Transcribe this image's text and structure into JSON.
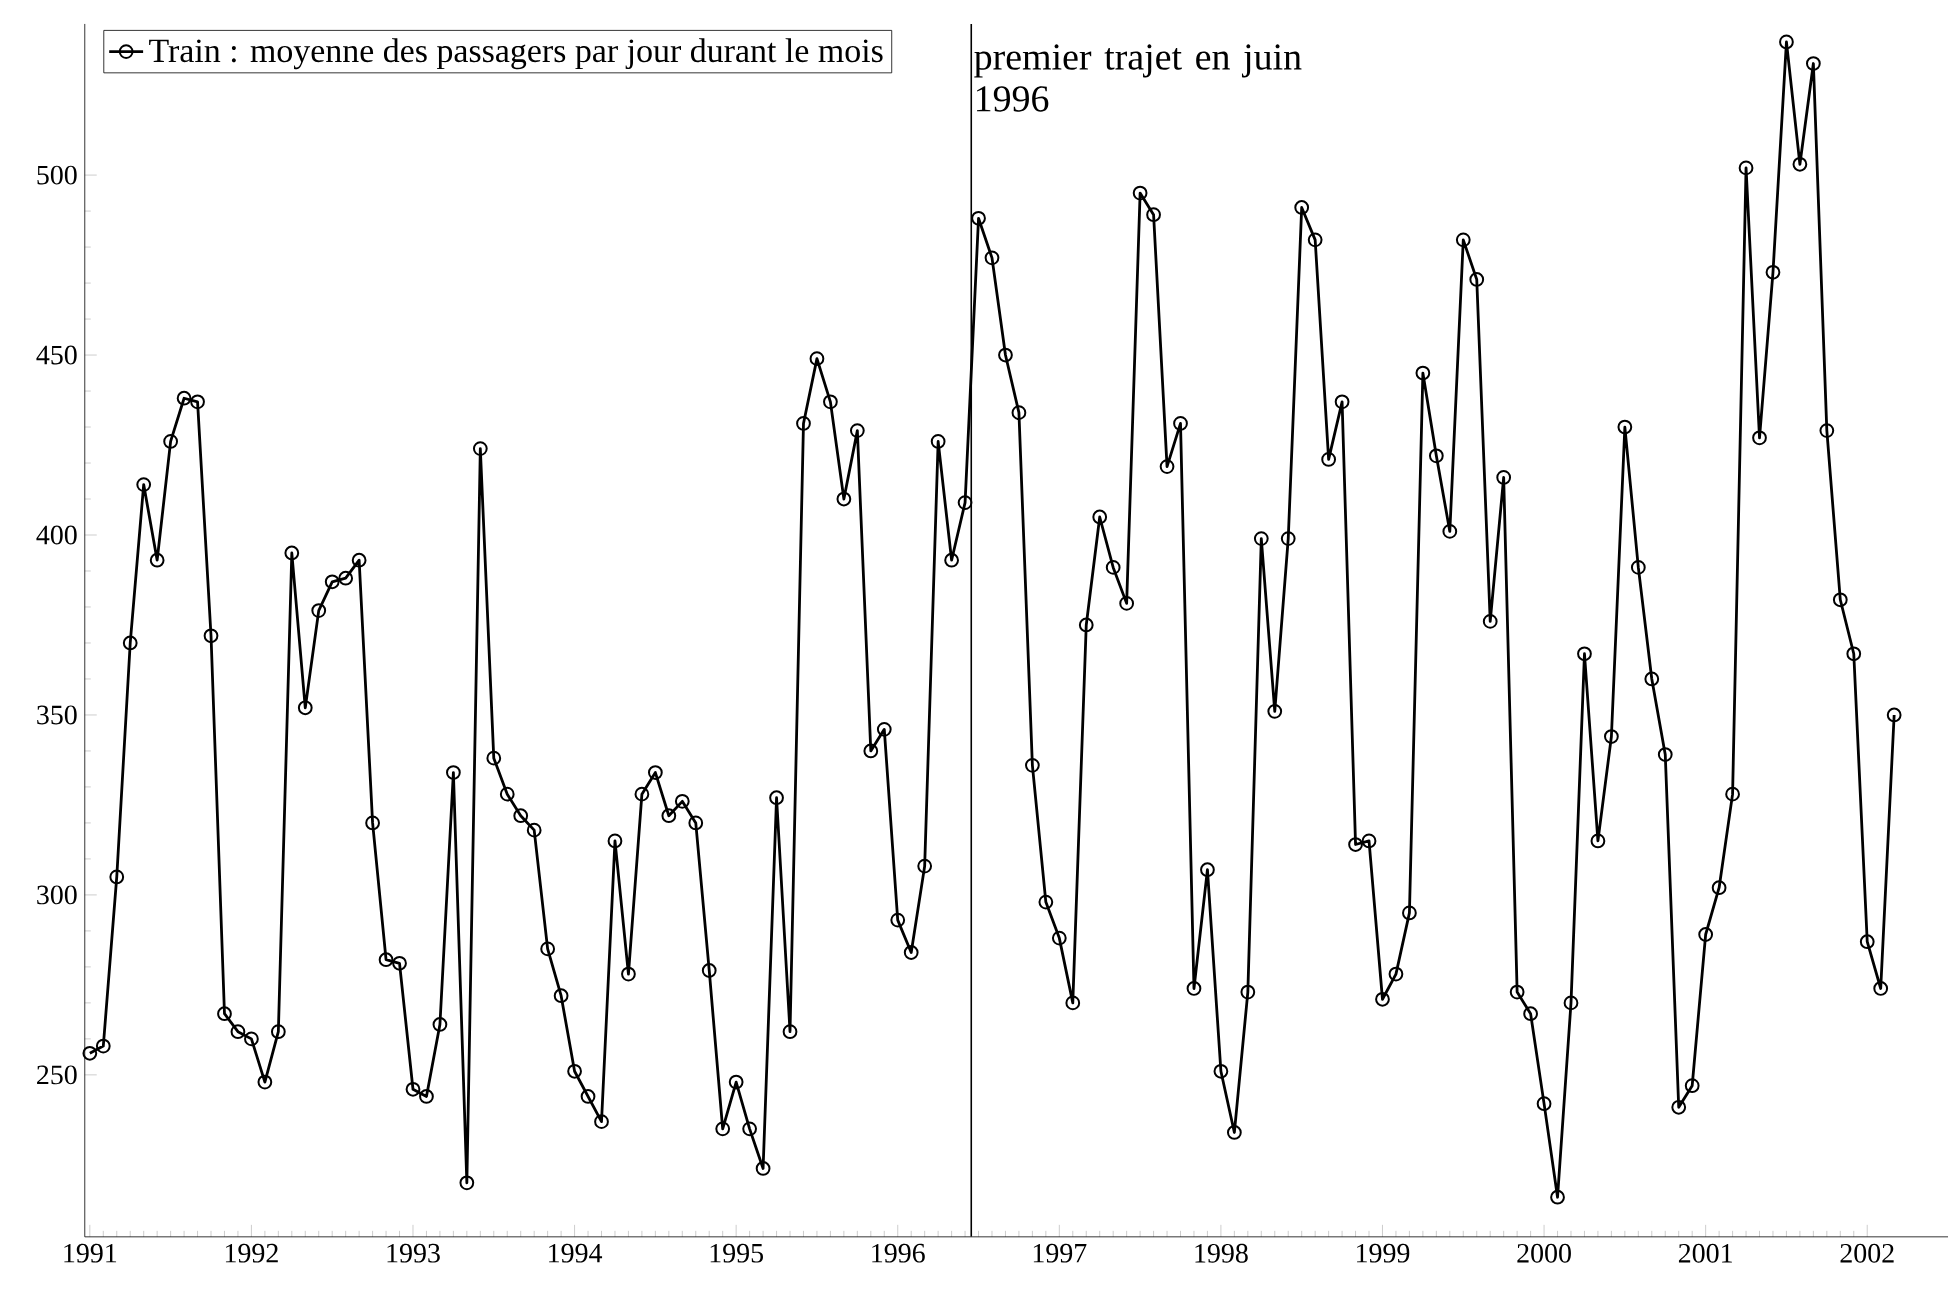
{
  "chart_data": {
    "type": "line",
    "legend": "top left",
    "marker": "circle",
    "line_style": "solid",
    "grid": false,
    "xlim": [
      "1990-12-20",
      "2002-07-01"
    ],
    "xticks": [
      "1991",
      "1992",
      "1993",
      "1994",
      "1995",
      "1996",
      "1997",
      "1998",
      "1999",
      "2000",
      "2001",
      "2002"
    ],
    "ylim": [
      205,
      542
    ],
    "yticks": [
      250,
      300,
      350,
      400,
      450,
      500
    ],
    "x": [
      "1991-01",
      "1991-02",
      "1991-03",
      "1991-04",
      "1991-05",
      "1991-06",
      "1991-07",
      "1991-08",
      "1991-09",
      "1991-10",
      "1991-11",
      "1991-12",
      "1992-01",
      "1992-02",
      "1992-03",
      "1992-04",
      "1992-05",
      "1992-06",
      "1992-07",
      "1992-08",
      "1992-09",
      "1992-10",
      "1992-11",
      "1992-12",
      "1993-01",
      "1993-02",
      "1993-03",
      "1993-04",
      "1993-05",
      "1993-06",
      "1993-07",
      "1993-08",
      "1993-09",
      "1993-10",
      "1993-11",
      "1993-12",
      "1994-01",
      "1994-02",
      "1994-03",
      "1994-04",
      "1994-05",
      "1994-06",
      "1994-07",
      "1994-08",
      "1994-09",
      "1994-10",
      "1994-11",
      "1994-12",
      "1995-01",
      "1995-02",
      "1995-03",
      "1995-04",
      "1995-05",
      "1995-06",
      "1995-07",
      "1995-08",
      "1995-09",
      "1995-10",
      "1995-11",
      "1995-12",
      "1996-01",
      "1996-02",
      "1996-03",
      "1996-04",
      "1996-05",
      "1996-06",
      "1996-07",
      "1996-08",
      "1996-09",
      "1996-10",
      "1996-11",
      "1996-12",
      "1997-01",
      "1997-02",
      "1997-03",
      "1997-04",
      "1997-05",
      "1997-06",
      "1997-07",
      "1997-08",
      "1997-09",
      "1997-10",
      "1997-11",
      "1997-12",
      "1998-01",
      "1998-02",
      "1998-03",
      "1998-04",
      "1998-05",
      "1998-06",
      "1998-07",
      "1998-08",
      "1998-09",
      "1998-10",
      "1998-11",
      "1998-12",
      "1999-01",
      "1999-02",
      "1999-03",
      "1999-04",
      "1999-05",
      "1999-06",
      "1999-07",
      "1999-08",
      "1999-09",
      "1999-10",
      "1999-11",
      "1999-12",
      "2000-01",
      "2000-02",
      "2000-03",
      "2000-04",
      "2000-05",
      "2000-06",
      "2000-07",
      "2000-08",
      "2000-09",
      "2000-10",
      "2000-11",
      "2000-12",
      "2001-01",
      "2001-02",
      "2001-03",
      "2001-04",
      "2001-05",
      "2001-06",
      "2001-07",
      "2001-08",
      "2001-09",
      "2001-10",
      "2001-11",
      "2001-12",
      "2002-01",
      "2002-02",
      "2002-03"
    ],
    "series": [
      {
        "name": "Train : moyenne des passagers par jour durant le mois",
        "color": "#000000",
        "values": [
          256,
          258,
          305,
          370,
          414,
          393,
          426,
          438,
          437,
          372,
          267,
          262,
          260,
          248,
          262,
          395,
          352,
          379,
          387,
          388,
          393,
          320,
          282,
          281,
          246,
          244,
          264,
          334,
          220,
          424,
          338,
          328,
          322,
          318,
          285,
          272,
          251,
          244,
          237,
          315,
          278,
          328,
          334,
          322,
          326,
          320,
          279,
          235,
          248,
          235,
          224,
          327,
          262,
          431,
          449,
          437,
          410,
          429,
          340,
          346,
          293,
          284,
          308,
          426,
          393,
          409,
          488,
          477,
          450,
          434,
          336,
          298,
          288,
          270,
          375,
          405,
          391,
          381,
          495,
          489,
          419,
          431,
          274,
          307,
          251,
          234,
          273,
          399,
          351,
          399,
          491,
          482,
          421,
          437,
          314,
          315,
          271,
          278,
          295,
          445,
          422,
          401,
          482,
          471,
          376,
          416,
          273,
          267,
          242,
          216,
          270,
          367,
          315,
          344,
          430,
          391,
          360,
          339,
          241,
          247,
          289,
          302,
          328,
          502,
          427,
          473,
          537,
          503,
          531,
          429,
          382,
          367,
          287,
          274,
          350
        ]
      }
    ],
    "ref_lines": [
      {
        "axis": "x",
        "value": "1996-06-15",
        "label": "premier trajet en juin 1996",
        "color": "#000000",
        "line_style": "solid"
      }
    ]
  }
}
